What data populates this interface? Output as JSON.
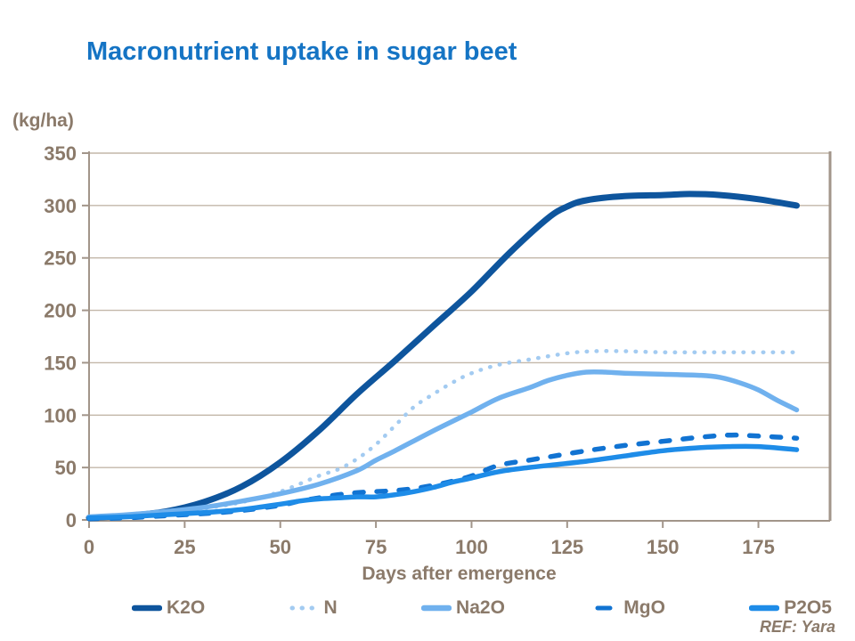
{
  "page": {
    "title": "Macronutrient uptake in sugar beet",
    "ref_note": "REF: Yara"
  },
  "chart_data": {
    "type": "line",
    "title": "Macronutrient uptake in sugar beet",
    "ylabel": "(kg/ha)",
    "xlabel": "Days after emergence",
    "xlim": [
      0,
      193.5
    ],
    "ylim": [
      0,
      350
    ],
    "xticks": [
      0,
      25,
      50,
      75,
      100,
      125,
      150,
      175
    ],
    "yticks": [
      0,
      50,
      100,
      150,
      200,
      250,
      300,
      350
    ],
    "grid": true,
    "legend_position": "bottom",
    "series": [
      {
        "name": "K2O",
        "style": "solid",
        "color": "#0E559D",
        "width": 7,
        "points": [
          [
            0,
            2
          ],
          [
            10,
            4
          ],
          [
            20,
            8
          ],
          [
            30,
            17
          ],
          [
            40,
            32
          ],
          [
            50,
            55
          ],
          [
            60,
            85
          ],
          [
            70,
            120
          ],
          [
            80,
            152
          ],
          [
            90,
            185
          ],
          [
            100,
            218
          ],
          [
            110,
            255
          ],
          [
            120,
            288
          ],
          [
            125,
            299
          ],
          [
            130,
            305
          ],
          [
            140,
            309
          ],
          [
            150,
            310
          ],
          [
            157,
            311
          ],
          [
            165,
            310
          ],
          [
            175,
            306
          ],
          [
            185,
            300
          ]
        ]
      },
      {
        "name": "N",
        "style": "dotted",
        "color": "#A3CBF1",
        "width": 4.5,
        "points": [
          [
            0,
            2
          ],
          [
            10,
            4
          ],
          [
            20,
            7
          ],
          [
            30,
            11
          ],
          [
            40,
            17
          ],
          [
            50,
            27
          ],
          [
            60,
            42
          ],
          [
            65,
            48
          ],
          [
            70,
            58
          ],
          [
            75,
            72
          ],
          [
            80,
            90
          ],
          [
            85,
            108
          ],
          [
            90,
            120
          ],
          [
            95,
            131
          ],
          [
            100,
            140
          ],
          [
            107,
            148
          ],
          [
            115,
            153
          ],
          [
            125,
            159
          ],
          [
            132,
            161
          ],
          [
            140,
            161
          ],
          [
            150,
            160
          ],
          [
            160,
            160
          ],
          [
            170,
            160
          ],
          [
            180,
            160
          ],
          [
            185,
            160
          ]
        ]
      },
      {
        "name": "Na2O",
        "style": "solid",
        "color": "#70B1EE",
        "width": 5.5,
        "points": [
          [
            0,
            3
          ],
          [
            10,
            5
          ],
          [
            20,
            8
          ],
          [
            30,
            12
          ],
          [
            40,
            18
          ],
          [
            50,
            25
          ],
          [
            60,
            34
          ],
          [
            70,
            47
          ],
          [
            75,
            57
          ],
          [
            80,
            66
          ],
          [
            90,
            85
          ],
          [
            100,
            103
          ],
          [
            107,
            116
          ],
          [
            115,
            126
          ],
          [
            120,
            133
          ],
          [
            125,
            138
          ],
          [
            130,
            141
          ],
          [
            135,
            141
          ],
          [
            140,
            140
          ],
          [
            150,
            139
          ],
          [
            160,
            138
          ],
          [
            165,
            136
          ],
          [
            170,
            131
          ],
          [
            175,
            124
          ],
          [
            180,
            114
          ],
          [
            185,
            105
          ]
        ]
      },
      {
        "name": "MgO",
        "style": "dashed",
        "color": "#1173D2",
        "width": 5.5,
        "points": [
          [
            0,
            1
          ],
          [
            10,
            2
          ],
          [
            20,
            4
          ],
          [
            30,
            6
          ],
          [
            40,
            9
          ],
          [
            50,
            14
          ],
          [
            55,
            18
          ],
          [
            60,
            21
          ],
          [
            65,
            24
          ],
          [
            70,
            26
          ],
          [
            75,
            27
          ],
          [
            80,
            28
          ],
          [
            85,
            30
          ],
          [
            90,
            33
          ],
          [
            95,
            37
          ],
          [
            100,
            42
          ],
          [
            107,
            52
          ],
          [
            115,
            57
          ],
          [
            120,
            60
          ],
          [
            130,
            66
          ],
          [
            140,
            71
          ],
          [
            150,
            75
          ],
          [
            160,
            79
          ],
          [
            168,
            81
          ],
          [
            175,
            80
          ],
          [
            185,
            78
          ]
        ]
      },
      {
        "name": "P2O5",
        "style": "solid",
        "color": "#1E8CE8",
        "width": 5.5,
        "points": [
          [
            0,
            2
          ],
          [
            10,
            3
          ],
          [
            20,
            5
          ],
          [
            30,
            7
          ],
          [
            40,
            10
          ],
          [
            50,
            15
          ],
          [
            55,
            18
          ],
          [
            60,
            20
          ],
          [
            65,
            21
          ],
          [
            70,
            22
          ],
          [
            75,
            22
          ],
          [
            80,
            24
          ],
          [
            85,
            27
          ],
          [
            90,
            31
          ],
          [
            95,
            36
          ],
          [
            100,
            40
          ],
          [
            107,
            46
          ],
          [
            115,
            50
          ],
          [
            120,
            52
          ],
          [
            130,
            56
          ],
          [
            140,
            61
          ],
          [
            150,
            66
          ],
          [
            160,
            69
          ],
          [
            167,
            70
          ],
          [
            175,
            70
          ],
          [
            185,
            67
          ]
        ]
      }
    ]
  },
  "colors": {
    "title": "#1574C4",
    "axis_text": "#8B7A6A",
    "gridline": "#C3B7A9",
    "axis_line": "#A2958A",
    "background": "#FFFFFF"
  }
}
